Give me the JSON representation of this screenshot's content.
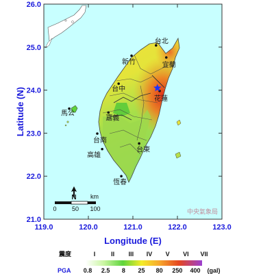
{
  "axes": {
    "xlabel": "Longitude (E)",
    "ylabel": "Latitude (N)",
    "xticks": [
      "119.0",
      "120.0",
      "121.0",
      "122.0",
      "123.0"
    ],
    "yticks": [
      "26.0",
      "25.0",
      "24.0",
      "23.0",
      "22.0",
      "21.0"
    ],
    "xlim": [
      119.0,
      123.0
    ],
    "ylim": [
      21.0,
      26.0
    ]
  },
  "cities": [
    {
      "name": "台北",
      "lon": 121.52,
      "lat": 25.04
    },
    {
      "name": "新竹",
      "lon": 120.97,
      "lat": 24.8
    },
    {
      "name": "宜蘭",
      "lon": 121.75,
      "lat": 24.76
    },
    {
      "name": "台中",
      "lon": 120.68,
      "lat": 24.15
    },
    {
      "name": "花蓮",
      "lon": 121.6,
      "lat": 23.98
    },
    {
      "name": "馬公",
      "lon": 119.57,
      "lat": 23.57
    },
    {
      "name": "嘉義",
      "lon": 120.45,
      "lat": 23.48
    },
    {
      "name": "台南",
      "lon": 120.2,
      "lat": 22.99
    },
    {
      "name": "台東",
      "lon": 121.14,
      "lat": 22.76
    },
    {
      "name": "高雄",
      "lon": 120.31,
      "lat": 22.63
    },
    {
      "name": "恆春",
      "lon": 120.74,
      "lat": 22.0
    }
  ],
  "epicenter": {
    "lon": 121.55,
    "lat": 24.05
  },
  "scalebar": {
    "unit": "km",
    "labels": [
      "0",
      "50",
      "100"
    ],
    "north": "N"
  },
  "watermark": "中央氣象局",
  "legend": {
    "intensity_label": "震度",
    "pga_label": "PGA",
    "intensity_levels": [
      "I",
      "II",
      "III",
      "IV",
      "V",
      "VI",
      "VII"
    ],
    "pga_values": [
      "0.8",
      "2.5",
      "8",
      "25",
      "80",
      "250",
      "400"
    ],
    "pga_unit": "(gal)",
    "colors": [
      "#ffffff",
      "#c8f5a0",
      "#5ed43c",
      "#f4ec2a",
      "#f7a52c",
      "#e5461f",
      "#9b3fd0"
    ]
  },
  "colors": {
    "sea": "#c8ffff",
    "axis_text": "#1a1adc",
    "epicenter": "#1c32ff"
  }
}
